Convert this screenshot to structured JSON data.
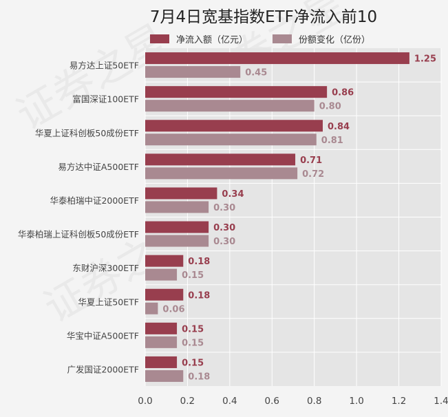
{
  "chart_data": {
    "type": "bar",
    "orientation": "horizontal",
    "title": "7月4日宽基指数ETF净流入前10",
    "categories": [
      "易方达上证50ETF",
      "富国深证100ETF",
      "华夏上证科创板50成份ETF",
      "易方达中证A500ETF",
      "华泰柏瑞中证2000ETF",
      "华泰柏瑞上证科创板50成份ETF",
      "东财沪深300ETF",
      "华夏上证50ETF",
      "华宝中证A500ETF",
      "广发国证2000ETF"
    ],
    "series": [
      {
        "name": "净流入额（亿元）",
        "color": "#983e4e",
        "values": [
          1.25,
          0.86,
          0.84,
          0.71,
          0.34,
          0.3,
          0.18,
          0.18,
          0.15,
          0.15
        ],
        "labels": [
          "1.25",
          "0.86",
          "0.84",
          "0.71",
          "0.34",
          "0.30",
          "0.18",
          "0.18",
          "0.15",
          "0.15"
        ]
      },
      {
        "name": "份额变化（亿份）",
        "color": "#a98991",
        "values": [
          0.45,
          0.8,
          0.81,
          0.72,
          0.3,
          0.3,
          0.15,
          0.06,
          0.15,
          0.18
        ],
        "labels": [
          "0.45",
          "0.80",
          "0.81",
          "0.72",
          "0.30",
          "0.30",
          "0.15",
          "0.06",
          "0.15",
          "0.18"
        ]
      }
    ],
    "xlim": [
      0,
      1.4
    ],
    "xticks": [
      "0.0",
      "0.2",
      "0.4",
      "0.6",
      "0.8",
      "1.0",
      "1.2",
      "1.4"
    ],
    "grid": true,
    "legend_position": "top"
  },
  "watermark": "证券之星",
  "colors": {
    "plot_bg": "#e5e5e5",
    "page_bg": "#f4f4f4",
    "grid": "#ffffff"
  }
}
